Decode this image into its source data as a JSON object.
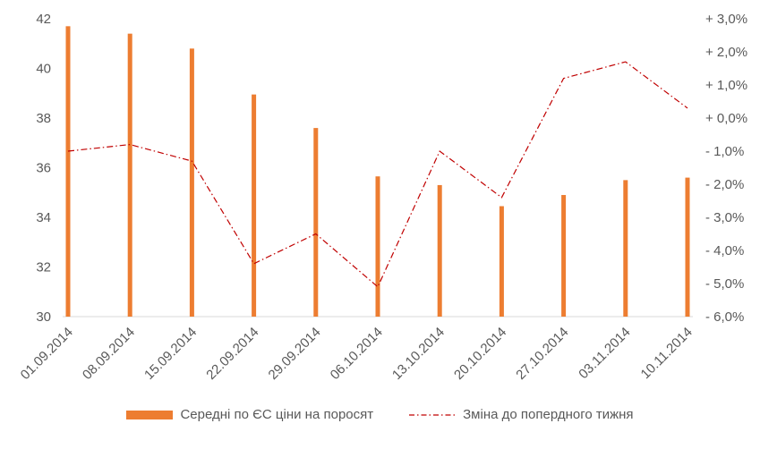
{
  "chart_data": {
    "type": "bar",
    "categories": [
      "01.09.2014",
      "08.09.2014",
      "15.09.2014",
      "22.09.2014",
      "29.09.2014",
      "06.10.2014",
      "13.10.2014",
      "20.10.2014",
      "27.10.2014",
      "03.11.2014",
      "10.11.2014"
    ],
    "series": [
      {
        "name": "Середні по ЄС ціни на поросят",
        "type": "bar",
        "axis": "left",
        "color": "#ED7D31",
        "values": [
          41.7,
          41.4,
          40.8,
          38.95,
          37.6,
          35.65,
          35.3,
          34.45,
          34.9,
          35.5,
          35.6
        ]
      },
      {
        "name": "Зміна до попердного тижня",
        "type": "line",
        "axis": "right",
        "color": "#C00000",
        "line_style": "dash-dot",
        "values": [
          -1.0,
          -0.8,
          -1.3,
          -4.4,
          -3.5,
          -5.1,
          -1.0,
          -2.4,
          1.2,
          1.7,
          0.3
        ]
      }
    ],
    "y_left": {
      "ylim": [
        30,
        42
      ],
      "ticks": [
        "30",
        "32",
        "34",
        "36",
        "38",
        "40",
        "42"
      ]
    },
    "y_right": {
      "ylim": [
        -6.0,
        3.0
      ],
      "ticks": [
        "- 6,0%",
        "- 5,0%",
        "- 4,0%",
        "- 3,0%",
        "- 2,0%",
        "- 1,0%",
        "+ 0,0%",
        "+ 1,0%",
        "+ 2,0%",
        "+ 3,0%"
      ]
    },
    "grid": false,
    "legend_position": "bottom"
  }
}
